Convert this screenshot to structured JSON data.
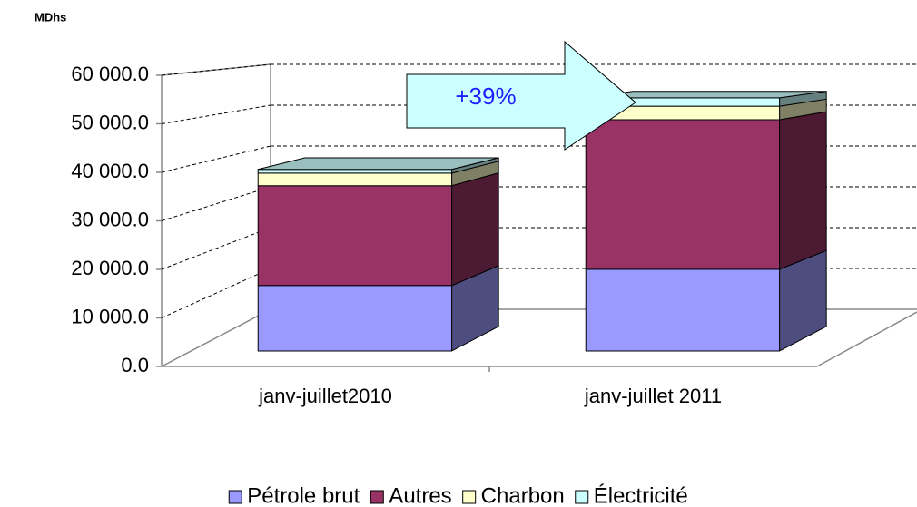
{
  "chart_data": {
    "type": "bar3d_stacked",
    "y_unit_label": "MDhs",
    "categories": [
      "janv-juillet2010",
      "janv-juillet 2011"
    ],
    "series": [
      {
        "name": "Pétrole brut",
        "color": "#9999ff",
        "values": [
          14100,
          17600
        ]
      },
      {
        "name": "Autres",
        "color": "#993366",
        "values": [
          21500,
          32200
        ]
      },
      {
        "name": "Charbon",
        "color": "#ffffcc",
        "values": [
          2700,
          2900
        ]
      },
      {
        "name": "Électricité",
        "color": "#ccffff",
        "values": [
          800,
          1800
        ]
      }
    ],
    "ylim": [
      0,
      60000
    ],
    "yticks": [
      {
        "value": 0,
        "label": "0.0"
      },
      {
        "value": 10000,
        "label": "10 000.0"
      },
      {
        "value": 20000,
        "label": "20 000.0"
      },
      {
        "value": 30000,
        "label": "30 000.0"
      },
      {
        "value": 40000,
        "label": "40 000.0"
      },
      {
        "value": 50000,
        "label": "50 000.0"
      },
      {
        "value": 60000,
        "label": "60 000.0"
      }
    ],
    "grid": true,
    "legend": "bottom",
    "annotation": "+39%"
  }
}
